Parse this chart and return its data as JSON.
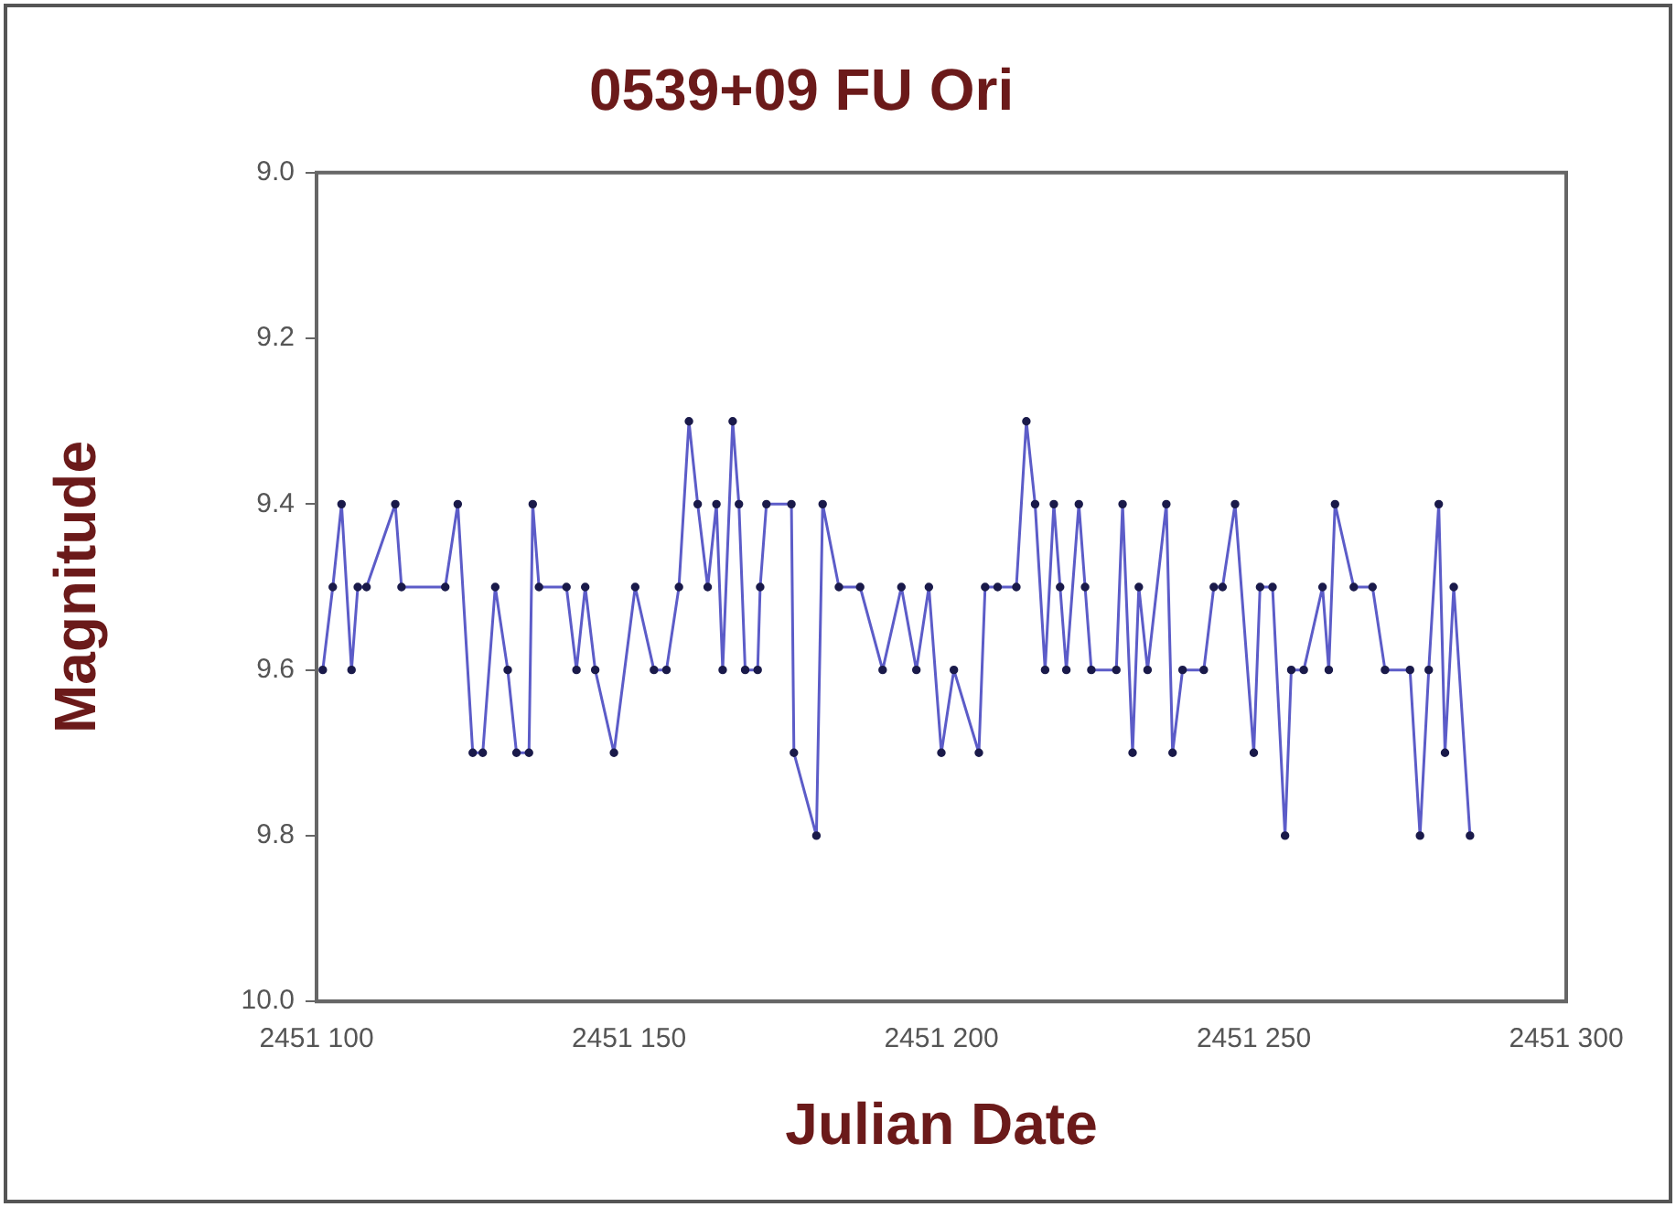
{
  "chart_data": {
    "type": "line",
    "title": "0539+09 FU Ori",
    "xlabel": "Julian Date",
    "ylabel": "Magnitude",
    "xlim": [
      2451100,
      2451300
    ],
    "xticks": [
      {
        "value": 2451100,
        "label": "2451 100"
      },
      {
        "value": 2451150,
        "label": "2451 150"
      },
      {
        "value": 2451200,
        "label": "2451 200"
      },
      {
        "value": 2451250,
        "label": "2451 250"
      },
      {
        "value": 2451300,
        "label": "2451 300"
      }
    ],
    "ylim": [
      10.0,
      9.0
    ],
    "yticks": [
      {
        "value": 9.0,
        "label": "9.0"
      },
      {
        "value": 9.2,
        "label": "9.2"
      },
      {
        "value": 9.4,
        "label": "9.4"
      },
      {
        "value": 9.6,
        "label": "9.6"
      },
      {
        "value": 9.8,
        "label": "9.8"
      },
      {
        "value": 10.0,
        "label": "10.0"
      }
    ],
    "grid": false,
    "legend": false,
    "marker": "circle",
    "line_style": "solid",
    "series": [
      {
        "color": "#5c5cc8",
        "x": [
          2451101,
          2451102.6,
          2451104,
          2451105.6,
          2451106.6,
          2451108,
          2451112.6,
          2451113.6,
          2451120.6,
          2451122.6,
          2451125,
          2451126.6,
          2451128.6,
          2451130.6,
          2451132,
          2451134,
          2451134.6,
          2451135.6,
          2451140,
          2451141.6,
          2451143,
          2451144.6,
          2451147.6,
          2451151,
          2451154,
          2451156,
          2451158,
          2451159.6,
          2451161,
          2451162.6,
          2451164,
          2451165,
          2451166.6,
          2451167.6,
          2451168.6,
          2451170.6,
          2451171,
          2451172,
          2451176,
          2451176.4,
          2451180,
          2451181,
          2451183.6,
          2451187,
          2451190.6,
          2451193.6,
          2451196,
          2451198,
          2451200,
          2451202,
          2451206,
          2451207,
          2451209,
          2451212,
          2451213.6,
          2451215,
          2451216.6,
          2451218,
          2451219,
          2451220,
          2451222,
          2451223,
          2451224,
          2451228,
          2451229,
          2451230.6,
          2451231.6,
          2451233,
          2451236,
          2451237,
          2451238.6,
          2451242,
          2451243.6,
          2451245,
          2451247,
          2451250,
          2451251,
          2451253,
          2451255,
          2451256,
          2451258,
          2451261,
          2451262,
          2451263,
          2451266,
          2451269,
          2451271,
          2451275,
          2451276.6,
          2451278,
          2451279.6,
          2451280.6,
          2451282,
          2451284.6
        ],
        "values": [
          9.6,
          9.5,
          9.4,
          9.6,
          9.5,
          9.5,
          9.4,
          9.5,
          9.5,
          9.4,
          9.7,
          9.7,
          9.5,
          9.6,
          9.7,
          9.7,
          9.4,
          9.5,
          9.5,
          9.6,
          9.5,
          9.6,
          9.7,
          9.5,
          9.6,
          9.6,
          9.5,
          9.3,
          9.4,
          9.5,
          9.4,
          9.6,
          9.3,
          9.4,
          9.6,
          9.6,
          9.5,
          9.4,
          9.4,
          9.7,
          9.8,
          9.4,
          9.5,
          9.5,
          9.6,
          9.5,
          9.6,
          9.5,
          9.7,
          9.6,
          9.7,
          9.5,
          9.5,
          9.5,
          9.3,
          9.4,
          9.6,
          9.4,
          9.5,
          9.6,
          9.4,
          9.5,
          9.6,
          9.6,
          9.4,
          9.7,
          9.5,
          9.6,
          9.4,
          9.7,
          9.6,
          9.6,
          9.5,
          9.5,
          9.4,
          9.7,
          9.5,
          9.5,
          9.8,
          9.6,
          9.6,
          9.5,
          9.6,
          9.4,
          9.5,
          9.5,
          9.6,
          9.6,
          9.8,
          9.6,
          9.4,
          9.7,
          9.5,
          9.8
        ]
      }
    ]
  }
}
